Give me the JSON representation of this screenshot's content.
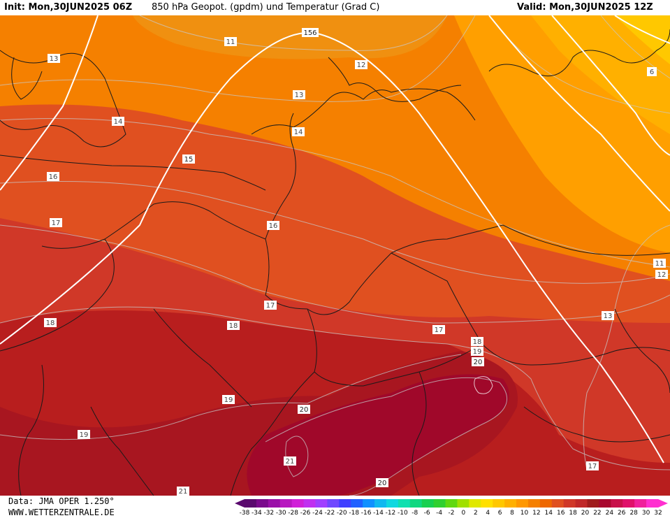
{
  "header": {
    "init": "Init: Mon,30JUN2025 06Z",
    "title": "850 hPa Geopot. (gpdm) und Temperatur (Grad C)",
    "valid": "Valid: Mon,30JUN2025 12Z"
  },
  "footer": {
    "data_source": "Data: JMA OPER 1.250°",
    "website": "WWW.WETTERZENTRALE.DE"
  },
  "colorbar": {
    "ticks": [
      "-38",
      "-34",
      "-32",
      "-30",
      "-28",
      "-26",
      "-24",
      "-22",
      "-20",
      "-18",
      "-16",
      "-14",
      "-12",
      "-10",
      "-8",
      "-6",
      "-4",
      "-2",
      "0",
      "2",
      "4",
      "6",
      "8",
      "10",
      "12",
      "14",
      "16",
      "18",
      "20",
      "22",
      "24",
      "26",
      "28",
      "30",
      "32"
    ],
    "colors": [
      "#5a0a6e",
      "#7a0a8c",
      "#9a10a8",
      "#b818c0",
      "#d020d8",
      "#c030f0",
      "#a040ff",
      "#7048ff",
      "#4040ff",
      "#2060ff",
      "#1090ff",
      "#10b8f0",
      "#10d8e0",
      "#10e0b0",
      "#10d880",
      "#18d050",
      "#30d030",
      "#60d810",
      "#a0e000",
      "#e0e800",
      "#ffe000",
      "#ffc800",
      "#ffb000",
      "#ff9800",
      "#f58000",
      "#ee6800",
      "#e05020",
      "#d03828",
      "#c02828",
      "#a01c1c",
      "#a8082e",
      "#c8104a",
      "#e0106a",
      "#f0209c",
      "#ff30d0"
    ]
  },
  "map": {
    "temperature_labels": [
      "11",
      "12",
      "13",
      "14",
      "15",
      "16",
      "17",
      "18",
      "19",
      "20",
      "21",
      "6"
    ],
    "geopotential_labels": [
      "156"
    ]
  }
}
